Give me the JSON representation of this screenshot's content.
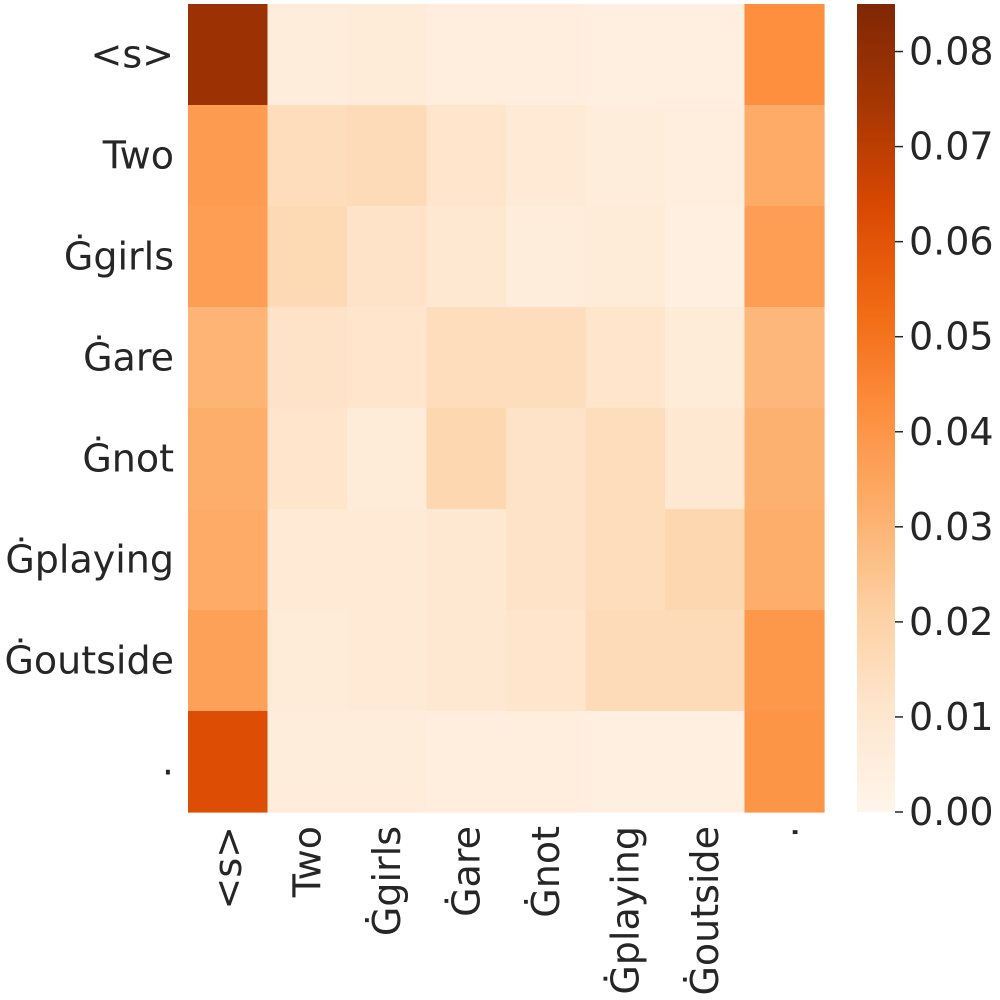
{
  "chart_data": {
    "type": "heatmap",
    "title": "",
    "xlabel": "",
    "ylabel": "",
    "x_categories": [
      "<s>",
      "Two",
      "Ġgirls",
      "Ġare",
      "Ġnot",
      "Ġplaying",
      "Ġoutside",
      "."
    ],
    "y_categories": [
      "<s>",
      "Two",
      "Ġgirls",
      "Ġare",
      "Ġnot",
      "Ġplaying",
      "Ġoutside",
      "."
    ],
    "values": [
      [
        0.077,
        0.006,
        0.007,
        0.005,
        0.005,
        0.004,
        0.004,
        0.042
      ],
      [
        0.038,
        0.015,
        0.016,
        0.011,
        0.008,
        0.006,
        0.005,
        0.033
      ],
      [
        0.037,
        0.017,
        0.012,
        0.009,
        0.006,
        0.007,
        0.004,
        0.037
      ],
      [
        0.03,
        0.012,
        0.011,
        0.015,
        0.015,
        0.011,
        0.007,
        0.029
      ],
      [
        0.032,
        0.011,
        0.007,
        0.018,
        0.012,
        0.015,
        0.009,
        0.031
      ],
      [
        0.033,
        0.008,
        0.008,
        0.009,
        0.012,
        0.015,
        0.018,
        0.032
      ],
      [
        0.036,
        0.007,
        0.008,
        0.009,
        0.011,
        0.016,
        0.016,
        0.039
      ],
      [
        0.062,
        0.006,
        0.006,
        0.005,
        0.005,
        0.004,
        0.004,
        0.04
      ]
    ],
    "colormap": "Oranges",
    "color_scale": {
      "min": 0.0,
      "max": 0.085,
      "ticks": [
        0.0,
        0.01,
        0.02,
        0.03,
        0.04,
        0.05,
        0.06,
        0.07,
        0.08
      ],
      "tick_labels": [
        "0.00",
        "0.01",
        "0.02",
        "0.03",
        "0.04",
        "0.05",
        "0.06",
        "0.07",
        "0.08"
      ]
    },
    "colors": {
      "low": "#fff5eb",
      "mid": "#fd8d3c",
      "high": "#7f2704"
    },
    "grid": false,
    "colorbar_position": "right"
  }
}
